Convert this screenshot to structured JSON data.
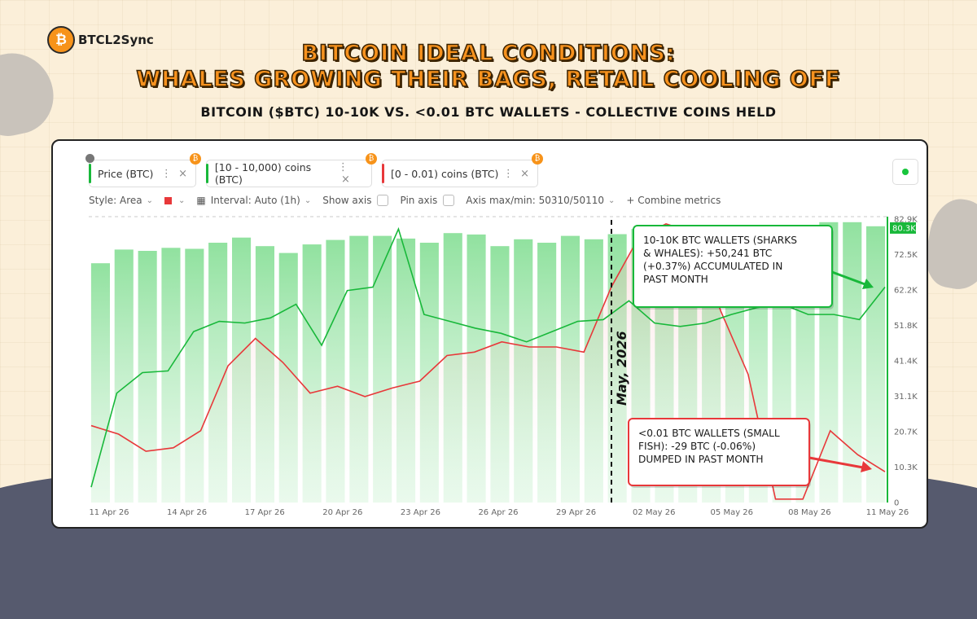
{
  "brand": {
    "name": "BTCL2Sync",
    "logo_symbol": "₿"
  },
  "headline": {
    "line1": "BITCOIN IDEAL CONDITIONS:",
    "line2": "WHALES GROWING THEIR BAGS, RETAIL COOLING OFF"
  },
  "subheadline": "BITCOIN ($BTC) 10-10K VS. <0.01 BTC WALLETS - COLLECTIVE COINS HELD",
  "metric_chips": [
    {
      "label": "Price (BTC)",
      "color": "#18b83a",
      "locked": true
    },
    {
      "label": "[10 - 10,000) coins (BTC)",
      "color": "#18b83a",
      "locked": false
    },
    {
      "label": "[0 - 0.01) coins (BTC)",
      "color": "#e8383a",
      "locked": false
    }
  ],
  "toolbar": {
    "style": "Style: Area",
    "interval": "Interval: Auto (1h)",
    "show_axis": "Show axis",
    "pin_axis": "Pin axis",
    "axis_maxmin": "Axis max/min: 50310/50110",
    "combine": "+ Combine metrics"
  },
  "colors": {
    "green": "#18b83a",
    "red": "#e8383a",
    "accent": "#f7921e"
  },
  "chart_data": {
    "type": "line",
    "x_tick_labels": [
      "11 Apr 26",
      "14 Apr 26",
      "17 Apr 26",
      "20 Apr 26",
      "23 Apr 26",
      "26 Apr 26",
      "29 Apr 26",
      "02 May 26",
      "05 May 26",
      "08 May 26",
      "11 May 26"
    ],
    "y_tick_labels": [
      "82.9K",
      "72.5K",
      "62.2K",
      "51.8K",
      "41.4K",
      "31.1K",
      "20.7K",
      "10.3K",
      "0"
    ],
    "ylim": [
      0,
      82900
    ],
    "current_value_label": "80.3K",
    "series": [
      {
        "name": "Price (BTC)",
        "style": "bars",
        "values": [
          70000,
          74000,
          73600,
          74500,
          74200,
          76000,
          77500,
          75000,
          73000,
          75500,
          76800,
          78000,
          78000,
          77200,
          76000,
          78800,
          78400,
          75000,
          77000,
          76000,
          78000,
          77000,
          78500,
          80000,
          80200,
          79600,
          80600,
          79400,
          80400,
          81000,
          81000,
          82000,
          82000,
          80800
        ]
      },
      {
        "name": "[10 - 10,000) coins (BTC)",
        "style": "line",
        "values": [
          4500,
          32000,
          38000,
          38500,
          50000,
          53000,
          52500,
          54000,
          58000,
          46000,
          62000,
          63000,
          80000,
          55000,
          53000,
          51000,
          49500,
          47000,
          50000,
          53000,
          53500,
          59000,
          52500,
          51500,
          52500,
          55000,
          57000,
          58000,
          55000,
          55000,
          53500,
          63000
        ]
      },
      {
        "name": "[0 - 0.01) coins (BTC)",
        "style": "line",
        "values": [
          22500,
          20000,
          15000,
          16000,
          21000,
          40000,
          48000,
          41000,
          32000,
          34000,
          31000,
          33500,
          35500,
          43000,
          44000,
          47000,
          45500,
          45500,
          44000,
          63000,
          77500,
          81500,
          79000,
          56000,
          37500,
          1000,
          1000,
          21000,
          14000,
          9000
        ]
      }
    ],
    "vline_label": "May, 2026",
    "annotations": [
      "10-10K BTC WALLETS (SHARKS & WHALES): +50,241 BTC (+0.37%) ACCUMULATED IN PAST MONTH",
      "<0.01 BTC WALLETS (SMALL FISH): -29 BTC (-0.06%) DUMPED IN PAST MONTH"
    ]
  }
}
